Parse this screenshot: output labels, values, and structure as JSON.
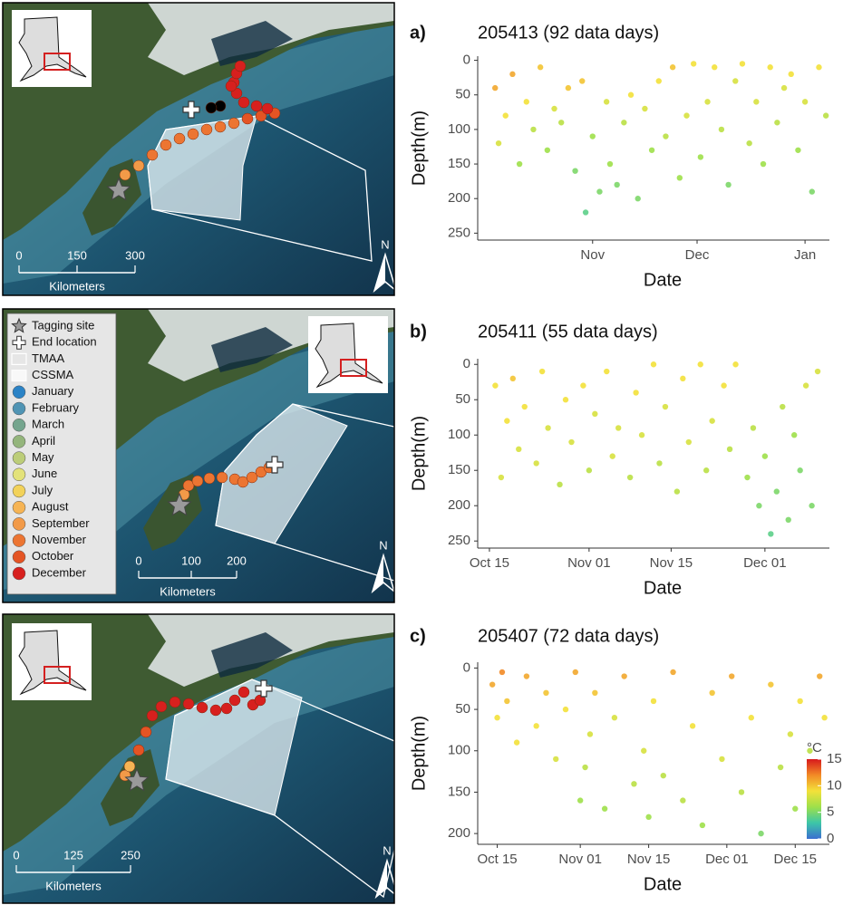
{
  "chart_data": [
    {
      "type": "scatter",
      "panel": "a)",
      "title": "205413 (92 data days)",
      "x_label": "Date",
      "y_label": "Depth(m)",
      "x": [
        3,
        4,
        6,
        8,
        10,
        12,
        14,
        16,
        18,
        20,
        22,
        24,
        26,
        28,
        29,
        31,
        33,
        35,
        36,
        38,
        40,
        42,
        44,
        46,
        48,
        50,
        52,
        54,
        56,
        58,
        60,
        62,
        64,
        66,
        68,
        70,
        72,
        74,
        76,
        78,
        80,
        82,
        84,
        86,
        88,
        90,
        92,
        94,
        96,
        98
      ],
      "values": [
        40,
        120,
        80,
        20,
        150,
        60,
        100,
        10,
        130,
        70,
        90,
        40,
        160,
        30,
        220,
        110,
        190,
        60,
        150,
        180,
        90,
        50,
        200,
        70,
        130,
        30,
        110,
        10,
        170,
        80,
        5,
        140,
        60,
        10,
        100,
        180,
        30,
        5,
        120,
        60,
        150,
        10,
        90,
        40,
        20,
        130,
        60,
        190,
        10,
        80
      ],
      "temperature": [
        11,
        8,
        9,
        11,
        6,
        9,
        7,
        10,
        6,
        8,
        7,
        10,
        5,
        10,
        4,
        6,
        5,
        8,
        6,
        5,
        7,
        9,
        5,
        8,
        6,
        9,
        7,
        10,
        6,
        8,
        9,
        6,
        8,
        9,
        7,
        5,
        8,
        9,
        7,
        8,
        6,
        9,
        7,
        8,
        9,
        6,
        8,
        5,
        9,
        7
      ],
      "xlim": [
        -2,
        99
      ],
      "xticks": [
        {
          "value": 31,
          "label": "Nov"
        },
        {
          "value": 61,
          "label": "Dec"
        },
        {
          "value": 92,
          "label": "Jan"
        }
      ],
      "ylim": [
        260,
        -6
      ],
      "yticks": [
        0,
        50,
        100,
        150,
        200,
        250
      ],
      "grid": false
    },
    {
      "type": "scatter",
      "panel": "b)",
      "title": "205411 (55 data days)",
      "x_label": "Date",
      "y_label": "Depth(m)",
      "x": [
        15,
        16,
        17,
        18,
        19,
        20,
        22,
        23,
        24,
        26,
        27,
        28,
        30,
        31,
        32,
        34,
        35,
        36,
        38,
        39,
        40,
        42,
        43,
        44,
        46,
        47,
        48,
        50,
        51,
        52,
        54,
        55,
        56,
        58,
        59,
        60,
        61,
        62,
        63,
        64,
        65,
        66,
        67,
        68,
        69,
        70
      ],
      "values": [
        30,
        160,
        80,
        20,
        120,
        60,
        140,
        10,
        90,
        170,
        50,
        110,
        30,
        150,
        70,
        10,
        130,
        90,
        160,
        40,
        100,
        0,
        140,
        60,
        180,
        20,
        110,
        0,
        150,
        80,
        30,
        120,
        0,
        160,
        90,
        200,
        130,
        240,
        180,
        60,
        220,
        100,
        150,
        30,
        200,
        10
      ],
      "temperature": [
        9,
        8,
        9,
        10,
        8,
        9,
        8,
        9,
        8,
        7,
        9,
        8,
        9,
        7,
        8,
        9,
        8,
        8,
        7,
        9,
        8,
        9,
        7,
        8,
        7,
        9,
        8,
        9,
        7,
        8,
        9,
        7,
        9,
        6,
        7,
        5,
        6,
        4,
        5,
        7,
        5,
        6,
        5,
        8,
        5,
        8
      ],
      "xlim": [
        12,
        72
      ],
      "xticks": [
        {
          "value": 14,
          "label": "Oct 15"
        },
        {
          "value": 31,
          "label": "Nov 01"
        },
        {
          "value": 45,
          "label": "Nov 15"
        },
        {
          "value": 61,
          "label": "Dec 01"
        }
      ],
      "ylim": [
        260,
        -8
      ],
      "yticks": [
        0,
        50,
        100,
        150,
        200,
        250
      ],
      "grid": false
    },
    {
      "type": "scatter",
      "panel": "c)",
      "title": "205407 (72 data days)",
      "x_label": "Date",
      "y_label": "Depth(m)",
      "x": [
        13,
        14,
        15,
        16,
        18,
        20,
        22,
        24,
        26,
        28,
        30,
        31,
        32,
        33,
        34,
        36,
        38,
        40,
        42,
        44,
        45,
        46,
        48,
        50,
        52,
        54,
        56,
        58,
        60,
        62,
        64,
        66,
        68,
        70,
        72,
        74,
        75,
        76,
        78,
        80,
        81
      ],
      "values": [
        20,
        60,
        5,
        40,
        90,
        10,
        70,
        30,
        110,
        50,
        5,
        160,
        120,
        80,
        30,
        170,
        60,
        10,
        140,
        100,
        180,
        40,
        130,
        5,
        160,
        70,
        190,
        30,
        110,
        10,
        150,
        60,
        200,
        20,
        120,
        80,
        170,
        40,
        100,
        10,
        60
      ],
      "temperature": [
        11,
        9,
        12,
        10,
        9,
        11,
        9,
        10,
        8,
        9,
        11,
        6,
        7,
        8,
        10,
        6,
        8,
        11,
        7,
        8,
        6,
        9,
        7,
        11,
        7,
        9,
        6,
        10,
        8,
        11,
        7,
        9,
        5,
        10,
        7,
        8,
        6,
        9,
        7,
        11,
        9
      ],
      "xlim": [
        10,
        82
      ],
      "xticks": [
        {
          "value": 14,
          "label": "Oct 15"
        },
        {
          "value": 31,
          "label": "Nov 01"
        },
        {
          "value": 45,
          "label": "Nov 15"
        },
        {
          "value": 61,
          "label": "Dec 01"
        },
        {
          "value": 75,
          "label": "Dec 15"
        }
      ],
      "ylim": [
        213,
        -7
      ],
      "yticks": [
        0,
        50,
        100,
        150,
        200
      ],
      "grid": false,
      "colorbar": {
        "label": "°C",
        "lim": [
          0,
          15
        ],
        "ticks": [
          0,
          5,
          10,
          15
        ],
        "colors": [
          "#3b6fd0",
          "#3cc6a8",
          "#9ee04a",
          "#f3e13a",
          "#f28a26",
          "#d7191c"
        ]
      }
    }
  ],
  "maps": [
    {
      "scale": [
        "0",
        "150",
        "300"
      ],
      "unit": "Kilometers",
      "north": "N"
    },
    {
      "scale": [
        "0",
        "100",
        "200"
      ],
      "unit": "Kilometers",
      "north": "N"
    },
    {
      "scale": [
        "0",
        "125",
        "250"
      ],
      "unit": "Kilometers",
      "north": "N"
    }
  ],
  "legend": [
    {
      "label": "Tagging site"
    },
    {
      "label": "End location"
    },
    {
      "label": "TMAA"
    },
    {
      "label": "CSSMA"
    },
    {
      "label": "January",
      "color": "#2b83c6"
    },
    {
      "label": "February",
      "color": "#4f94b4"
    },
    {
      "label": "March",
      "color": "#74a58e"
    },
    {
      "label": "April",
      "color": "#94b57c"
    },
    {
      "label": "May",
      "color": "#bccd78"
    },
    {
      "label": "June",
      "color": "#e3e27a"
    },
    {
      "label": "July",
      "color": "#f2d25a"
    },
    {
      "label": "August",
      "color": "#f6b454"
    },
    {
      "label": "September",
      "color": "#f29a48"
    },
    {
      "label": "November",
      "color": "#ec7532"
    },
    {
      "label": "October",
      "color": "#e45424"
    },
    {
      "label": "December",
      "color": "#d7201e"
    }
  ]
}
